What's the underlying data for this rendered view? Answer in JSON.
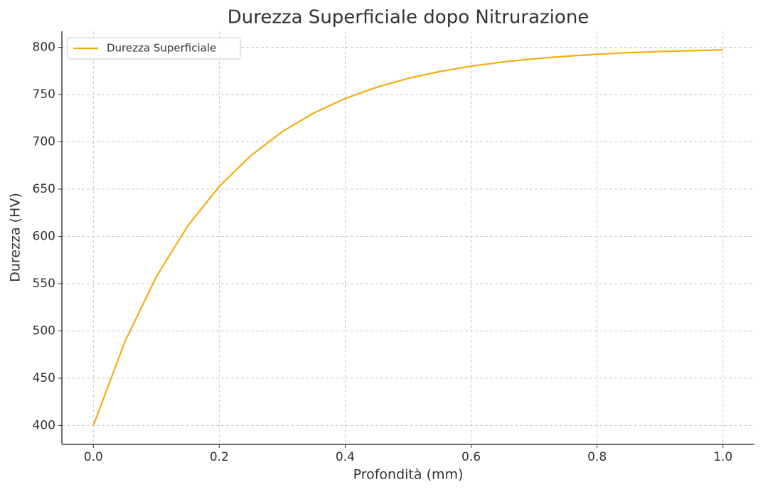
{
  "chart_data": {
    "type": "line",
    "title": "Durezza Superficiale dopo Nitrurazione",
    "x_label": "Profondità (mm)",
    "y_label": "Durezza (HV)",
    "x": [
      0,
      0.05,
      0.1,
      0.15,
      0.2,
      0.25,
      0.3,
      0.35,
      0.4,
      0.45,
      0.5,
      0.55,
      0.6,
      0.65,
      0.7,
      0.75,
      0.8,
      0.85,
      0.9,
      0.95,
      1.0
    ],
    "series": [
      {
        "name": "Durezza Superficiale",
        "color": "#f7ab10",
        "values": [
          400,
          488.5,
          557.4,
          611.1,
          652.9,
          685.4,
          710.8,
          730.5,
          745.9,
          757.8,
          767.2,
          774.4,
          780.1,
          784.5,
          787.9,
          790.6,
          792.7,
          794.3,
          795.6,
          796.5,
          797.3
        ]
      }
    ],
    "xlim": [
      -0.05,
      1.05
    ],
    "ylim": [
      380,
      817
    ],
    "xticks": [
      {
        "value": 0,
        "label": "0.0"
      },
      {
        "value": 0.2,
        "label": "0.2"
      },
      {
        "value": 0.4,
        "label": "0.4"
      },
      {
        "value": 0.6,
        "label": "0.6"
      },
      {
        "value": 0.8,
        "label": "0.8"
      },
      {
        "value": 1.0,
        "label": "1.0"
      }
    ],
    "yticks": [
      400,
      450,
      500,
      550,
      600,
      650,
      700,
      750,
      800
    ],
    "grid": true,
    "legend": "upper-left"
  }
}
